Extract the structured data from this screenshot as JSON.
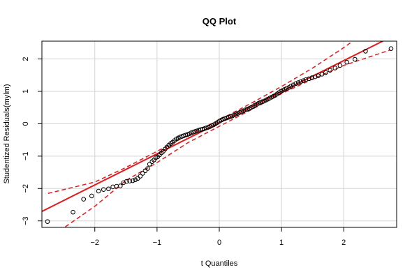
{
  "chart_data": {
    "type": "scatter",
    "title": "QQ Plot",
    "xlabel": "t Quantiles",
    "ylabel": "Studentized Residuals(mylm)",
    "xlim": [
      -2.85,
      2.85
    ],
    "ylim": [
      -3.2,
      2.55
    ],
    "grid": true,
    "x_ticks": [
      -2,
      -1,
      0,
      1,
      2
    ],
    "y_ticks": [
      -3,
      -2,
      -1,
      0,
      1,
      2
    ],
    "x_tick_labels": [
      "−2",
      "−1",
      "0",
      "1",
      "2"
    ],
    "y_tick_labels": [
      "−3",
      "−2",
      "−1",
      "0",
      "1",
      "2"
    ],
    "colors": {
      "points": "#000000",
      "reference_line": "#e41a1c",
      "envelope": "#e41a1c",
      "grid": "#d3d3d3"
    },
    "reference_line": {
      "intercept": 0.03,
      "slope": 0.96
    },
    "envelope": {
      "x": [
        -2.75,
        -2.0,
        -1.5,
        -1.0,
        -0.5,
        0.0,
        0.5,
        1.0,
        1.5,
        2.0,
        2.75
      ],
      "upper": [
        -2.15,
        -1.8,
        -1.35,
        -0.85,
        -0.35,
        0.12,
        0.62,
        1.15,
        1.72,
        2.35,
        3.4
      ],
      "lower": [
        -3.55,
        -2.55,
        -1.75,
        -1.2,
        -0.58,
        -0.08,
        0.42,
        0.93,
        1.38,
        1.8,
        2.28
      ]
    },
    "points": {
      "x": [
        -2.76,
        -2.35,
        -2.18,
        -2.05,
        -1.94,
        -1.86,
        -1.78,
        -1.71,
        -1.65,
        -1.59,
        -1.54,
        -1.49,
        -1.44,
        -1.39,
        -1.35,
        -1.31,
        -1.27,
        -1.23,
        -1.19,
        -1.15,
        -1.12,
        -1.08,
        -1.05,
        -1.02,
        -0.99,
        -0.96,
        -0.93,
        -0.9,
        -0.87,
        -0.84,
        -0.81,
        -0.78,
        -0.75,
        -0.72,
        -0.69,
        -0.66,
        -0.63,
        -0.6,
        -0.57,
        -0.54,
        -0.51,
        -0.48,
        -0.45,
        -0.42,
        -0.39,
        -0.36,
        -0.33,
        -0.3,
        -0.27,
        -0.24,
        -0.21,
        -0.18,
        -0.15,
        -0.12,
        -0.09,
        -0.06,
        -0.03,
        0.0,
        0.03,
        0.06,
        0.09,
        0.12,
        0.15,
        0.18,
        0.21,
        0.24,
        0.27,
        0.3,
        0.33,
        0.36,
        0.39,
        0.42,
        0.45,
        0.48,
        0.51,
        0.54,
        0.57,
        0.6,
        0.63,
        0.66,
        0.69,
        0.72,
        0.75,
        0.78,
        0.81,
        0.84,
        0.87,
        0.9,
        0.93,
        0.96,
        0.99,
        1.02,
        1.05,
        1.08,
        1.12,
        1.15,
        1.19,
        1.23,
        1.27,
        1.31,
        1.35,
        1.39,
        1.44,
        1.49,
        1.54,
        1.59,
        1.65,
        1.71,
        1.78,
        1.86,
        1.94,
        2.05,
        2.18,
        2.35,
        2.76
      ],
      "y": [
        -3.02,
        -2.73,
        -2.33,
        -2.23,
        -2.08,
        -2.03,
        -2.01,
        -1.95,
        -1.93,
        -1.92,
        -1.82,
        -1.78,
        -1.77,
        -1.76,
        -1.73,
        -1.69,
        -1.62,
        -1.53,
        -1.45,
        -1.38,
        -1.25,
        -1.17,
        -1.12,
        -1.05,
        -1.02,
        -0.96,
        -0.9,
        -0.85,
        -0.78,
        -0.72,
        -0.66,
        -0.61,
        -0.57,
        -0.52,
        -0.47,
        -0.44,
        -0.41,
        -0.39,
        -0.37,
        -0.35,
        -0.33,
        -0.31,
        -0.28,
        -0.26,
        -0.24,
        -0.22,
        -0.2,
        -0.18,
        -0.17,
        -0.15,
        -0.13,
        -0.11,
        -0.09,
        -0.06,
        -0.03,
        0.0,
        0.04,
        0.08,
        0.11,
        0.14,
        0.16,
        0.18,
        0.2,
        0.22,
        0.24,
        0.27,
        0.3,
        0.32,
        0.35,
        0.37,
        0.4,
        0.43,
        0.45,
        0.47,
        0.5,
        0.53,
        0.57,
        0.6,
        0.63,
        0.66,
        0.68,
        0.7,
        0.73,
        0.76,
        0.79,
        0.82,
        0.85,
        0.88,
        0.92,
        0.96,
        1.0,
        1.03,
        1.06,
        1.09,
        1.12,
        1.16,
        1.2,
        1.24,
        1.27,
        1.3,
        1.33,
        1.36,
        1.39,
        1.42,
        1.45,
        1.48,
        1.53,
        1.58,
        1.65,
        1.72,
        1.8,
        1.9,
        1.99,
        2.24,
        2.32
      ]
    }
  }
}
